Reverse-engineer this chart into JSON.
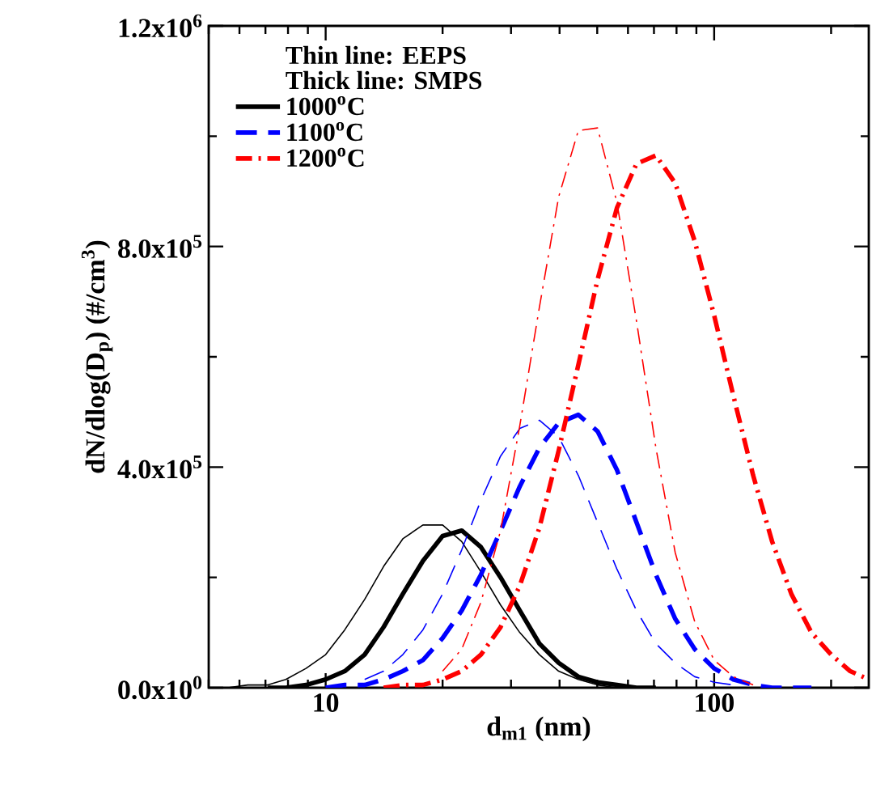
{
  "chart_data": {
    "type": "line",
    "xlabel": "d$_{m1}$ (nm)",
    "ylabel": "dN/dlog(D$_{p}$) (#/cm$^{3}$)",
    "log": "x",
    "legend": "top left",
    "annotations": [
      "Thin line: EEPS",
      "Thick line: SMPS"
    ],
    "xlim": [
      5,
      250
    ],
    "ylim": [
      0,
      1200000
    ],
    "xticks": [
      {
        "value": 5,
        "label": null
      },
      {
        "value": 6,
        "label": null
      },
      {
        "value": 7,
        "label": null
      },
      {
        "value": 8,
        "label": null
      },
      {
        "value": 9,
        "label": null
      },
      10,
      {
        "value": 20,
        "label": null
      },
      {
        "value": 30,
        "label": null
      },
      {
        "value": 40,
        "label": null
      },
      {
        "value": 50,
        "label": null
      },
      {
        "value": 60,
        "label": null
      },
      {
        "value": 70,
        "label": null
      },
      {
        "value": 80,
        "label": null
      },
      {
        "value": 90,
        "label": null
      },
      100,
      {
        "value": 200,
        "label": null
      }
    ],
    "yticks": [
      {
        "value": 0,
        "label": "0.0x10$^{0}$"
      },
      {
        "value": 200000,
        "label": null
      },
      {
        "value": 400000,
        "label": "4.0x10$^{5}$"
      },
      {
        "value": 600000,
        "label": null
      },
      {
        "value": 800000,
        "label": "8.0x10$^{5}$"
      },
      {
        "value": 1000000,
        "label": null
      },
      {
        "value": 1200000,
        "label": "1.2x10$^{6}$"
      }
    ],
    "series": [
      {
        "color": "#000000",
        "line_style": "solid",
        "x": [
          5,
          5.6,
          6.3,
          7.1,
          7.9,
          8.9,
          10,
          11.2,
          12.6,
          14.1,
          15.8,
          17.8,
          20,
          22.4,
          25.1,
          28.2,
          31.6,
          35.5,
          39.8,
          44.7,
          50.1,
          56.2,
          63.1,
          70.8
        ],
        "values": [
          0,
          0,
          5000,
          5000,
          15000,
          35000,
          60000,
          105000,
          160000,
          220000,
          270000,
          295000,
          295000,
          265000,
          210000,
          150000,
          100000,
          60000,
          30000,
          15000,
          5000,
          0,
          0,
          0
        ]
      },
      {
        "name": "1000$^{o}$C",
        "color": "#000000",
        "line_style": "solid",
        "x": [
          7.1,
          7.9,
          8.9,
          10,
          11.2,
          12.6,
          14.1,
          15.8,
          17.8,
          20,
          22.4,
          25.1,
          28.2,
          31.6,
          35.5,
          39.8,
          44.7,
          50.1,
          56.2,
          63.1,
          70.8
        ],
        "values": [
          0,
          0,
          5000,
          15000,
          30000,
          60000,
          110000,
          170000,
          230000,
          275000,
          285000,
          255000,
          200000,
          140000,
          80000,
          45000,
          20000,
          10000,
          5000,
          0,
          0
        ]
      },
      {
        "color": "#0000ff",
        "line_style": "dashed",
        "x": [
          12.6,
          14.1,
          15.8,
          17.8,
          20,
          22.4,
          25.1,
          28.2,
          31.6,
          35.5,
          39.8,
          44.7,
          50.1,
          56.2,
          63.1,
          70.8,
          79.4,
          89.1,
          100,
          112
        ],
        "values": [
          15000,
          30000,
          60000,
          105000,
          170000,
          250000,
          340000,
          420000,
          470000,
          485000,
          455000,
          385000,
          300000,
          215000,
          140000,
          80000,
          45000,
          20000,
          10000,
          5000
        ]
      },
      {
        "name": "1100$^{o}$C",
        "color": "#0000ff",
        "line_style": "dashed",
        "x": [
          10,
          11.2,
          12.6,
          14.1,
          15.8,
          17.8,
          20,
          22.4,
          25.1,
          28.2,
          31.6,
          35.5,
          39.8,
          44.7,
          50.1,
          56.2,
          63.1,
          70.8,
          79.4,
          89.1,
          100,
          112,
          126,
          141,
          158,
          178
        ],
        "values": [
          0,
          5000,
          5000,
          15000,
          30000,
          50000,
          90000,
          140000,
          205000,
          285000,
          365000,
          435000,
          480000,
          495000,
          465000,
          395000,
          300000,
          205000,
          125000,
          70000,
          35000,
          15000,
          5000,
          0,
          0,
          0
        ]
      },
      {
        "color": "#ff0000",
        "line_style": "dashdot",
        "x": [
          20,
          22.4,
          25.1,
          28.2,
          31.6,
          35.5,
          39.8,
          44.7,
          50.1,
          56.2,
          63.1,
          70.8,
          79.4,
          89.1,
          100,
          112,
          126
        ],
        "values": [
          30000,
          70000,
          155000,
          285000,
          475000,
          690000,
          890000,
          1010000,
          1015000,
          880000,
          665000,
          435000,
          245000,
          120000,
          50000,
          20000,
          5000
        ]
      },
      {
        "name": "1200$^{o}$C",
        "color": "#ff0000",
        "line_style": "dashdot",
        "x": [
          14.1,
          15.8,
          17.8,
          20,
          22.4,
          25.1,
          28.2,
          31.6,
          35.5,
          39.8,
          44.7,
          50.1,
          56.2,
          63.1,
          70.8,
          79.4,
          89.1,
          100,
          112,
          126,
          141,
          158,
          178,
          200,
          224,
          250
        ],
        "values": [
          0,
          5000,
          5000,
          15000,
          30000,
          60000,
          110000,
          185000,
          290000,
          430000,
          585000,
          740000,
          870000,
          950000,
          965000,
          915000,
          810000,
          675000,
          530000,
          385000,
          265000,
          170000,
          100000,
          60000,
          30000,
          15000
        ]
      }
    ]
  }
}
